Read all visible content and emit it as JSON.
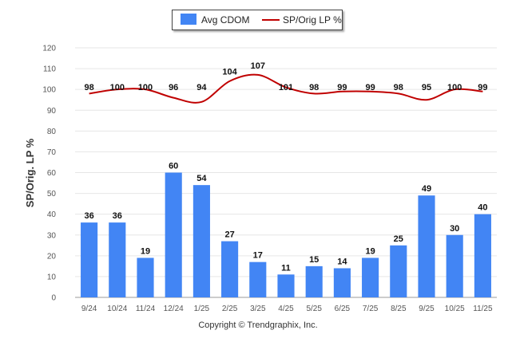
{
  "legend": {
    "bar_label": "Avg CDOM",
    "line_label": "SP/Orig LP %"
  },
  "copyright": "Copyright © Trendgraphix, Inc.",
  "chart_data": {
    "type": "bar",
    "categories": [
      "9/24",
      "10/24",
      "11/24",
      "12/24",
      "1/25",
      "2/25",
      "3/25",
      "4/25",
      "5/25",
      "6/25",
      "7/25",
      "8/25",
      "9/25",
      "10/25",
      "11/25"
    ],
    "series": [
      {
        "name": "Avg CDOM",
        "type": "bar",
        "color": "#4285f4",
        "values": [
          36,
          36,
          19,
          60,
          54,
          27,
          17,
          11,
          15,
          14,
          19,
          25,
          49,
          30,
          40
        ]
      },
      {
        "name": "SP/Orig LP %",
        "type": "line",
        "color": "#c00000",
        "values": [
          98,
          100,
          100,
          96,
          94,
          104,
          107,
          101,
          98,
          99,
          99,
          98,
          95,
          100,
          99
        ]
      }
    ],
    "ylabel": "SP/Orig. LP %",
    "xlabel": "",
    "ylim": [
      0,
      120
    ],
    "yticks": [
      0,
      10,
      20,
      30,
      40,
      50,
      60,
      70,
      80,
      90,
      100,
      110,
      120
    ],
    "grid": true,
    "legend_position": "top-center"
  }
}
